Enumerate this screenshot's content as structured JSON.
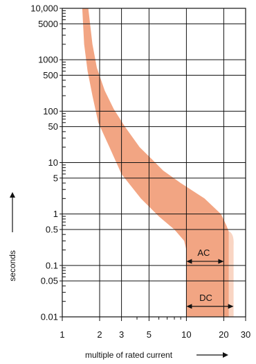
{
  "chart_data": {
    "type": "area",
    "title": "",
    "xlabel": "multiple of rated current",
    "ylabel": "seconds",
    "xscale": "log",
    "yscale": "log",
    "xlim": [
      1,
      30
    ],
    "ylim": [
      0.01,
      10000
    ],
    "grid": true,
    "x_ticks": [
      {
        "value": 1,
        "label": "1"
      },
      {
        "value": 2,
        "label": "2"
      },
      {
        "value": 3,
        "label": "3"
      },
      {
        "value": 5,
        "label": "5"
      },
      {
        "value": 10,
        "label": "10"
      },
      {
        "value": 20,
        "label": "20"
      },
      {
        "value": 30,
        "label": "30"
      }
    ],
    "y_ticks": [
      {
        "value": 10000,
        "label": "10,000"
      },
      {
        "value": 5000,
        "label": "5000"
      },
      {
        "value": 1000,
        "label": "1000"
      },
      {
        "value": 500,
        "label": "500"
      },
      {
        "value": 100,
        "label": "100"
      },
      {
        "value": 50,
        "label": "50"
      },
      {
        "value": 10,
        "label": "10"
      },
      {
        "value": 5,
        "label": "5"
      },
      {
        "value": 1,
        "label": "1"
      },
      {
        "value": 0.5,
        "label": "0.5"
      },
      {
        "value": 0.1,
        "label": "0.1"
      },
      {
        "value": 0.05,
        "label": "0.05"
      },
      {
        "value": 0.01,
        "label": "0.01"
      }
    ],
    "x_gridlines": [
      2,
      3,
      5,
      10,
      20,
      30
    ],
    "y_gridlines": [
      5000,
      1000,
      500,
      100,
      50,
      10,
      5,
      1,
      0.5,
      0.1,
      0.05
    ],
    "band": {
      "name": "",
      "color": "#f2a583",
      "upper": [
        [
          1.62,
          10000
        ],
        [
          1.75,
          2000
        ],
        [
          1.9,
          700
        ],
        [
          2.2,
          250
        ],
        [
          2.6,
          110
        ],
        [
          3.2,
          50
        ],
        [
          4.2,
          20
        ],
        [
          5.2,
          12
        ],
        [
          6.5,
          7
        ],
        [
          9,
          4
        ],
        [
          14,
          2
        ],
        [
          19,
          1
        ],
        [
          21,
          0.6
        ],
        [
          22,
          0.45
        ]
      ],
      "lower": [
        [
          1.45,
          10000
        ],
        [
          1.5,
          2000
        ],
        [
          1.6,
          600
        ],
        [
          1.75,
          200
        ],
        [
          1.95,
          60
        ],
        [
          2.4,
          20
        ],
        [
          3.0,
          6
        ],
        [
          4.3,
          2
        ],
        [
          6,
          0.9
        ],
        [
          8,
          0.5
        ],
        [
          9.6,
          0.3
        ],
        [
          10,
          0.2
        ]
      ],
      "ac_bottom_edge": [
        [
          10,
          0.01
        ],
        [
          22,
          0.01
        ]
      ],
      "dc_extension": {
        "color": "#f9d5c3",
        "x_range": [
          22,
          24
        ],
        "y_range": [
          0.01,
          0.3
        ]
      }
    },
    "annotations": [
      {
        "label": "AC",
        "x_from": 10,
        "x_to": 20,
        "y": 0.12,
        "arrows": "both"
      },
      {
        "label": "DC",
        "x_from": 10,
        "x_to": 24,
        "y": 0.016,
        "arrows": "both"
      }
    ]
  }
}
